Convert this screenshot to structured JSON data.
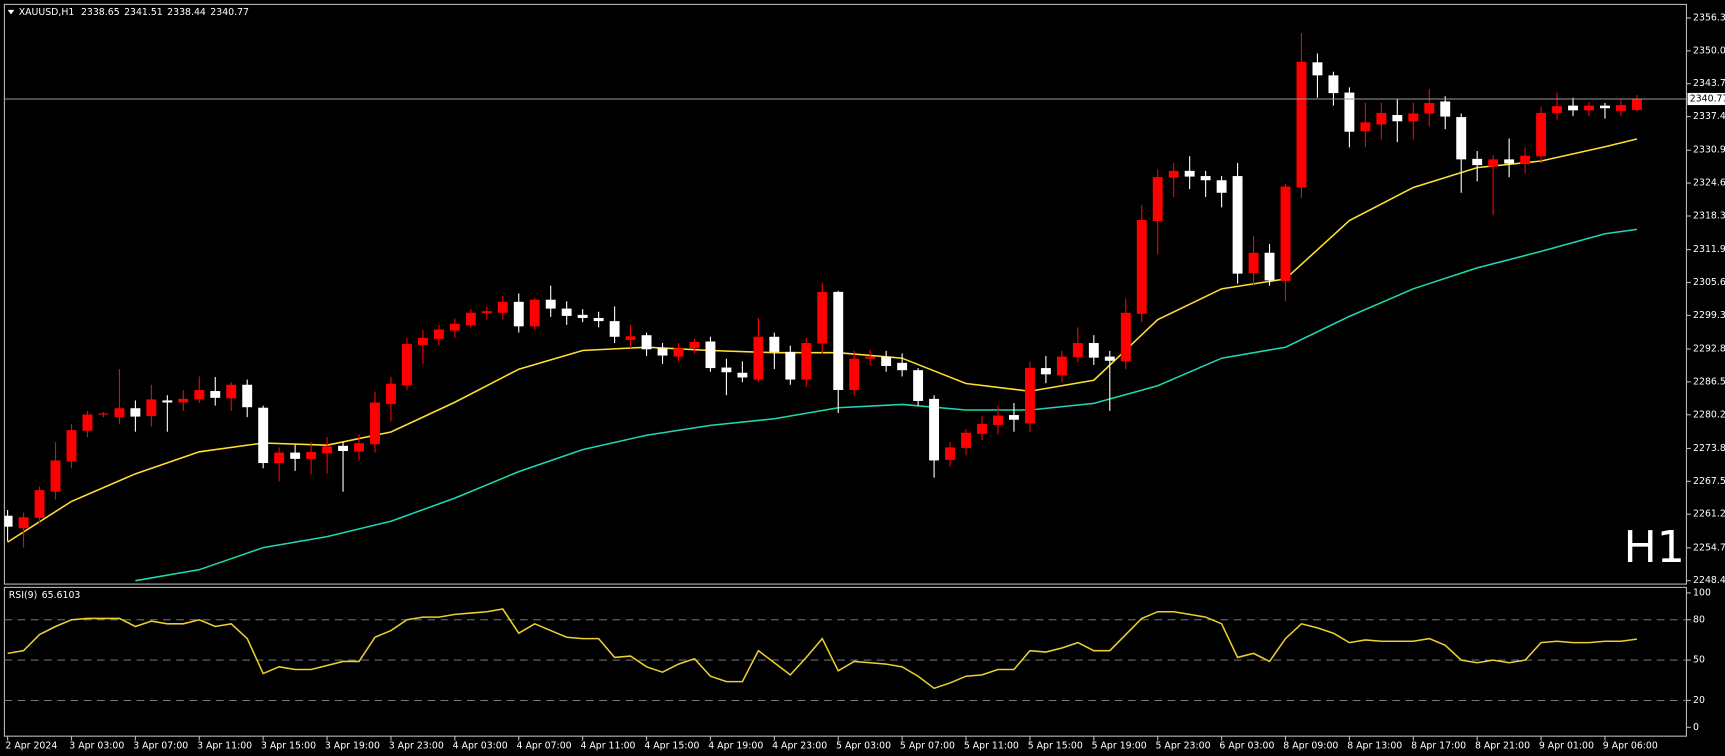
{
  "chart_data": [
    {
      "type": "candlestick",
      "title": "XAUUSD,H1",
      "annotation": "H1",
      "categories": [
        "2 Apr 2024",
        null,
        null,
        null,
        "3 Apr 03:00",
        null,
        null,
        null,
        "3 Apr 07:00",
        null,
        null,
        null,
        "3 Apr 11:00",
        null,
        null,
        null,
        "3 Apr 15:00",
        null,
        null,
        null,
        "3 Apr 19:00",
        null,
        null,
        null,
        "3 Apr 23:00",
        null,
        null,
        null,
        "4 Apr 03:00",
        null,
        null,
        null,
        "4 Apr 07:00",
        null,
        null,
        null,
        "4 Apr 11:00",
        null,
        null,
        null,
        "4 Apr 15:00",
        null,
        null,
        null,
        "4 Apr 19:00",
        null,
        null,
        null,
        "4 Apr 23:00",
        null,
        null,
        null,
        "5 Apr 03:00",
        null,
        null,
        null,
        "5 Apr 07:00",
        null,
        null,
        null,
        "5 Apr 11:00",
        null,
        null,
        null,
        "5 Apr 15:00",
        null,
        null,
        null,
        "5 Apr 19:00",
        null,
        null,
        null,
        "5 Apr 23:00",
        null,
        null,
        null,
        "6 Apr 03:00",
        null,
        null,
        null,
        "8 Apr 09:00",
        null,
        null,
        null,
        "8 Apr 13:00",
        null,
        null,
        null,
        "8 Apr 17:00",
        null,
        null,
        null,
        "8 Apr 21:00",
        null,
        null,
        null,
        "9 Apr 01:00",
        null,
        null,
        null,
        "9 Apr 06:00",
        null,
        null
      ],
      "open": [
        2260.9,
        2258.5,
        2260.5,
        2265.5,
        2271.3,
        2277.2,
        2280.3,
        2279.8,
        2281.5,
        2280,
        2283,
        2282.6,
        2283.2,
        2284.8,
        2283.4,
        2286,
        2281.6,
        2271,
        2273,
        2271.8,
        2272.9,
        2274.3,
        2273.2,
        2274.6,
        2282.3,
        2285.9,
        2293.6,
        2294.8,
        2296.4,
        2297.4,
        2299.7,
        2299.8,
        2301.9,
        2297.2,
        2302.3,
        2300.6,
        2299.4,
        2298.8,
        2298.2,
        2294.6,
        2295.5,
        2293,
        2291.4,
        2293,
        2294.3,
        2289.3,
        2288.3,
        2287,
        2295.2,
        2292.3,
        2287,
        2293.9,
        2303.8,
        2285,
        2291,
        2291.4,
        2290.2,
        2288.8,
        2283.3,
        2271.6,
        2273.9,
        2276.6,
        2278.3,
        2280.2,
        2278.6,
        2289.2,
        2287.8,
        2291.3,
        2294,
        2291.4,
        2290.5,
        2299.6,
        2317.4,
        2325.7,
        2327,
        2326,
        2325.2,
        2326,
        2307.4,
        2311.3,
        2305.9,
        2323.8,
        2347.8,
        2345.3,
        2342,
        2334.6,
        2335.9,
        2337.7,
        2336.5,
        2338,
        2340.3,
        2337.3,
        2329.3,
        2327.8,
        2329.2,
        2328.3,
        2329.8,
        2338.1,
        2339.5,
        2338.6,
        2339.5,
        2338.5,
        2338.65
      ],
      "high": [
        2262,
        2261.5,
        2266.5,
        2275,
        2278.5,
        2281,
        2280.8,
        2289,
        2283,
        2286,
        2284,
        2285,
        2287.6,
        2287.5,
        2286.5,
        2287,
        2282,
        2274,
        2274.5,
        2275,
        2276,
        2275,
        2276.5,
        2284.7,
        2287.5,
        2295,
        2296.5,
        2297.5,
        2298.7,
        2300.5,
        2301,
        2303,
        2303.5,
        2302.6,
        2305,
        2302,
        2300.5,
        2300,
        2301,
        2297.5,
        2296,
        2294,
        2294,
        2294.8,
        2295.2,
        2291,
        2290.5,
        2298.8,
        2296,
        2293.5,
        2295,
        2305.6,
        2304,
        2292.5,
        2292.7,
        2292.5,
        2292,
        2289.2,
        2284,
        2275,
        2277.5,
        2280,
        2282,
        2282.5,
        2290.5,
        2291.5,
        2292.5,
        2297,
        2295.5,
        2292.5,
        2302.5,
        2320.5,
        2327.3,
        2328.5,
        2329.8,
        2327,
        2326,
        2328.5,
        2314.5,
        2313,
        2324.5,
        2353.4,
        2349.5,
        2346,
        2343,
        2340,
        2340,
        2340.8,
        2340,
        2342.7,
        2341.3,
        2338,
        2330.8,
        2330,
        2333.2,
        2331.5,
        2339.3,
        2342,
        2341,
        2340.2,
        2340,
        2340.5,
        2341.51
      ],
      "low": [
        2256,
        2254.8,
        2259.5,
        2264,
        2270,
        2276,
        2279.8,
        2278.5,
        2277,
        2278,
        2277,
        2281,
        2282.5,
        2282,
        2281,
        2279.8,
        2270,
        2267.5,
        2269.5,
        2268.8,
        2269,
        2265.5,
        2271.5,
        2273,
        2279,
        2285,
        2290,
        2293.5,
        2295,
        2297,
        2298.5,
        2298.5,
        2296,
        2296.5,
        2299,
        2297.5,
        2298,
        2297,
        2294,
        2293,
        2291.5,
        2290,
        2290.5,
        2292,
        2288.5,
        2284,
        2286.5,
        2286.5,
        2289,
        2286,
        2285.6,
        2292,
        2280.6,
        2284,
        2289.8,
        2288.5,
        2287.6,
        2282,
        2268.2,
        2270.3,
        2272.5,
        2275.4,
        2276.5,
        2277,
        2277,
        2286.3,
        2286.5,
        2290.3,
        2289.8,
        2281,
        2289,
        2298,
        2311,
        2322,
        2323.5,
        2322,
        2320,
        2305.4,
        2305,
        2305,
        2302,
        2321.8,
        2341,
        2339.5,
        2331.5,
        2331.5,
        2333,
        2332.5,
        2333,
        2335.5,
        2335,
        2322.8,
        2325,
        2318.5,
        2325.8,
        2326.5,
        2328.5,
        2336.8,
        2337.5,
        2337.5,
        2337,
        2337.5,
        2338.44
      ],
      "close": [
        2258.8,
        2260.6,
        2265.8,
        2271.5,
        2277.3,
        2280.3,
        2280.5,
        2281.5,
        2279.9,
        2283.2,
        2282.6,
        2283.3,
        2285,
        2283.5,
        2286,
        2281.7,
        2271,
        2273,
        2271.8,
        2273.1,
        2274.2,
        2273.3,
        2274.8,
        2282.6,
        2286.2,
        2293.8,
        2295,
        2296.6,
        2297.7,
        2299.8,
        2300.1,
        2301.9,
        2297.2,
        2302.3,
        2300.6,
        2299.2,
        2298.8,
        2298.2,
        2295.2,
        2295.3,
        2292.8,
        2291.6,
        2293,
        2294.2,
        2289.2,
        2288.4,
        2287.4,
        2295.2,
        2292.3,
        2287,
        2294,
        2303.8,
        2285,
        2291,
        2291.4,
        2289.6,
        2288.8,
        2282.9,
        2271.5,
        2274,
        2276.8,
        2278.5,
        2280.1,
        2279.3,
        2289.2,
        2288,
        2291.4,
        2294,
        2291.2,
        2290.6,
        2299.8,
        2317.6,
        2325.8,
        2327,
        2325.9,
        2325.2,
        2322.8,
        2307.3,
        2311.3,
        2306,
        2324,
        2347.9,
        2345.3,
        2341.9,
        2334.5,
        2336.3,
        2338.1,
        2336.5,
        2338,
        2340,
        2337.4,
        2329.2,
        2328.1,
        2329.2,
        2328.4,
        2329.9,
        2338.1,
        2339.4,
        2338.6,
        2339.5,
        2339,
        2339.6,
        2340.77
      ],
      "up_color": "#ff0000",
      "down_color": "#ffffff",
      "price_line_color": "#9a9a9a",
      "annotation_color": "#e00000",
      "series": [
        {
          "color": "#ffe030",
          "x": [
            0,
            4,
            8,
            12,
            16,
            20,
            24,
            28,
            32,
            36,
            40,
            44,
            48,
            52,
            56,
            60,
            64,
            68,
            72,
            76,
            80,
            84,
            88,
            92,
            96,
            100,
            102
          ],
          "values": [
            2255.84,
            2263.65,
            2268.93,
            2273.15,
            2274.84,
            2274.42,
            2276.95,
            2282.65,
            2288.98,
            2292.57,
            2293.2,
            2292.57,
            2292.15,
            2292.15,
            2291.09,
            2286.24,
            2284.76,
            2286.87,
            2298.48,
            2304.39,
            2306.29,
            2317.48,
            2323.81,
            2327.61,
            2328.88,
            2331.62,
            2333.1
          ]
        },
        {
          "color": "#20d8b0",
          "x": [
            8,
            12,
            16,
            20,
            24,
            28,
            32,
            36,
            40,
            44,
            48,
            52,
            56,
            60,
            64,
            68,
            72,
            76,
            80,
            84,
            88,
            92,
            96,
            100,
            102
          ],
          "values": [
            2248.45,
            2250.56,
            2254.78,
            2256.89,
            2259.85,
            2264.28,
            2269.35,
            2273.57,
            2276.32,
            2278.22,
            2279.48,
            2281.59,
            2282.23,
            2281.17,
            2281.17,
            2282.44,
            2285.81,
            2291.09,
            2293.2,
            2299.11,
            2304.39,
            2308.4,
            2311.57,
            2314.95,
            2315.79
          ]
        }
      ],
      "xlim": [
        -0.2,
        105.1
      ],
      "ylim": [
        2247.8,
        2358.9
      ],
      "yticks": [
        {
          "value": 2356.3,
          "label": "2356.30"
        },
        {
          "value": 2350,
          "label": "2350.00"
        },
        {
          "value": 2343.7,
          "label": "2343.70"
        },
        {
          "value": 2337.4,
          "label": "2337.40"
        },
        {
          "value": 2330.95,
          "label": "2330.95"
        },
        {
          "value": 2324.65,
          "label": "2324.65"
        },
        {
          "value": 2318.35,
          "label": "2318.35"
        },
        {
          "value": 2311.9,
          "label": "2311.90"
        },
        {
          "value": 2305.6,
          "label": "2305.60"
        },
        {
          "value": 2299.3,
          "label": "2299.30"
        },
        {
          "value": 2292.85,
          "label": "2292.85"
        },
        {
          "value": 2286.55,
          "label": "2286.55"
        },
        {
          "value": 2280.25,
          "label": "2280.25"
        },
        {
          "value": 2273.8,
          "label": "2273.80"
        },
        {
          "value": 2267.5,
          "label": "2267.50"
        },
        {
          "value": 2261.2,
          "label": "2261.20"
        },
        {
          "value": 2254.75,
          "label": "2254.75"
        },
        {
          "value": 2248.45,
          "label": "2248.45"
        }
      ]
    },
    {
      "type": "line",
      "title": "RSI(9)",
      "color": "#e8d030",
      "level_color": "#8a8a8a",
      "values": [
        55,
        57,
        69,
        75,
        80,
        81,
        81,
        81,
        75,
        79,
        77,
        77,
        80,
        75,
        77,
        66,
        40,
        45,
        43,
        43,
        46,
        49,
        49,
        67,
        72,
        80,
        82,
        82,
        84,
        85,
        86,
        88,
        70,
        77,
        72,
        67,
        66,
        66,
        52,
        53,
        45,
        41,
        47,
        51,
        38,
        34,
        34,
        57,
        48,
        39,
        52,
        66,
        42,
        49,
        48,
        47,
        45,
        38,
        29,
        33,
        38,
        39,
        43,
        43,
        57,
        56,
        59,
        63,
        57,
        57,
        69,
        81,
        86,
        86,
        84,
        82,
        77,
        52,
        55,
        49,
        66,
        77,
        74,
        70,
        63,
        65,
        64,
        64,
        64,
        66,
        61,
        50,
        48,
        50,
        48,
        50,
        63,
        64,
        63,
        63,
        64,
        64,
        65.6103
      ],
      "levels": [
        80,
        50,
        20
      ],
      "xlim": [
        -0.2,
        105.1
      ],
      "ylim": [
        -6.6,
        104.1
      ],
      "yticks": [
        100,
        80,
        50,
        20,
        0
      ]
    }
  ]
}
